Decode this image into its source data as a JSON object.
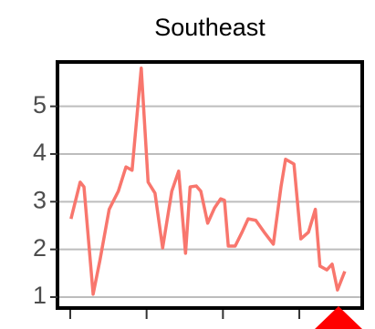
{
  "chart_data": {
    "type": "line",
    "title": "Southeast",
    "x": [
      0.1,
      1.3,
      1.8,
      3.0,
      3.9,
      5.1,
      6.3,
      7.3,
      8.1,
      9.3,
      10.2,
      11.1,
      12.1,
      13.3,
      14.2,
      15.1,
      15.7,
      16.5,
      17.1,
      18.0,
      18.9,
      19.7,
      20.2,
      20.7,
      21.6,
      22.5,
      23.3,
      24.3,
      25.4,
      26.6,
      27.6,
      28.2,
      29.3,
      30.2,
      31.2,
      32.1,
      32.7,
      33.6,
      34.3,
      35.0,
      35.96
    ],
    "values": [
      2.64,
      3.41,
      3.31,
      1.06,
      1.78,
      2.84,
      3.22,
      3.73,
      3.66,
      5.8,
      3.41,
      3.18,
      2.03,
      3.22,
      3.64,
      1.92,
      3.31,
      3.33,
      3.22,
      2.55,
      2.87,
      3.06,
      3.03,
      2.07,
      2.07,
      2.36,
      2.64,
      2.61,
      2.36,
      2.11,
      3.31,
      3.89,
      3.79,
      2.22,
      2.36,
      2.84,
      1.65,
      1.57,
      1.69,
      1.15,
      1.54
    ],
    "color": "#f8766d",
    "xlim": [
      -1.67,
      38.24
    ],
    "xticks": [
      0,
      10,
      20,
      30
    ],
    "ylim": [
      0.77,
      5.93
    ],
    "yticks": [
      1,
      2,
      3,
      4,
      5
    ],
    "grid": true
  }
}
